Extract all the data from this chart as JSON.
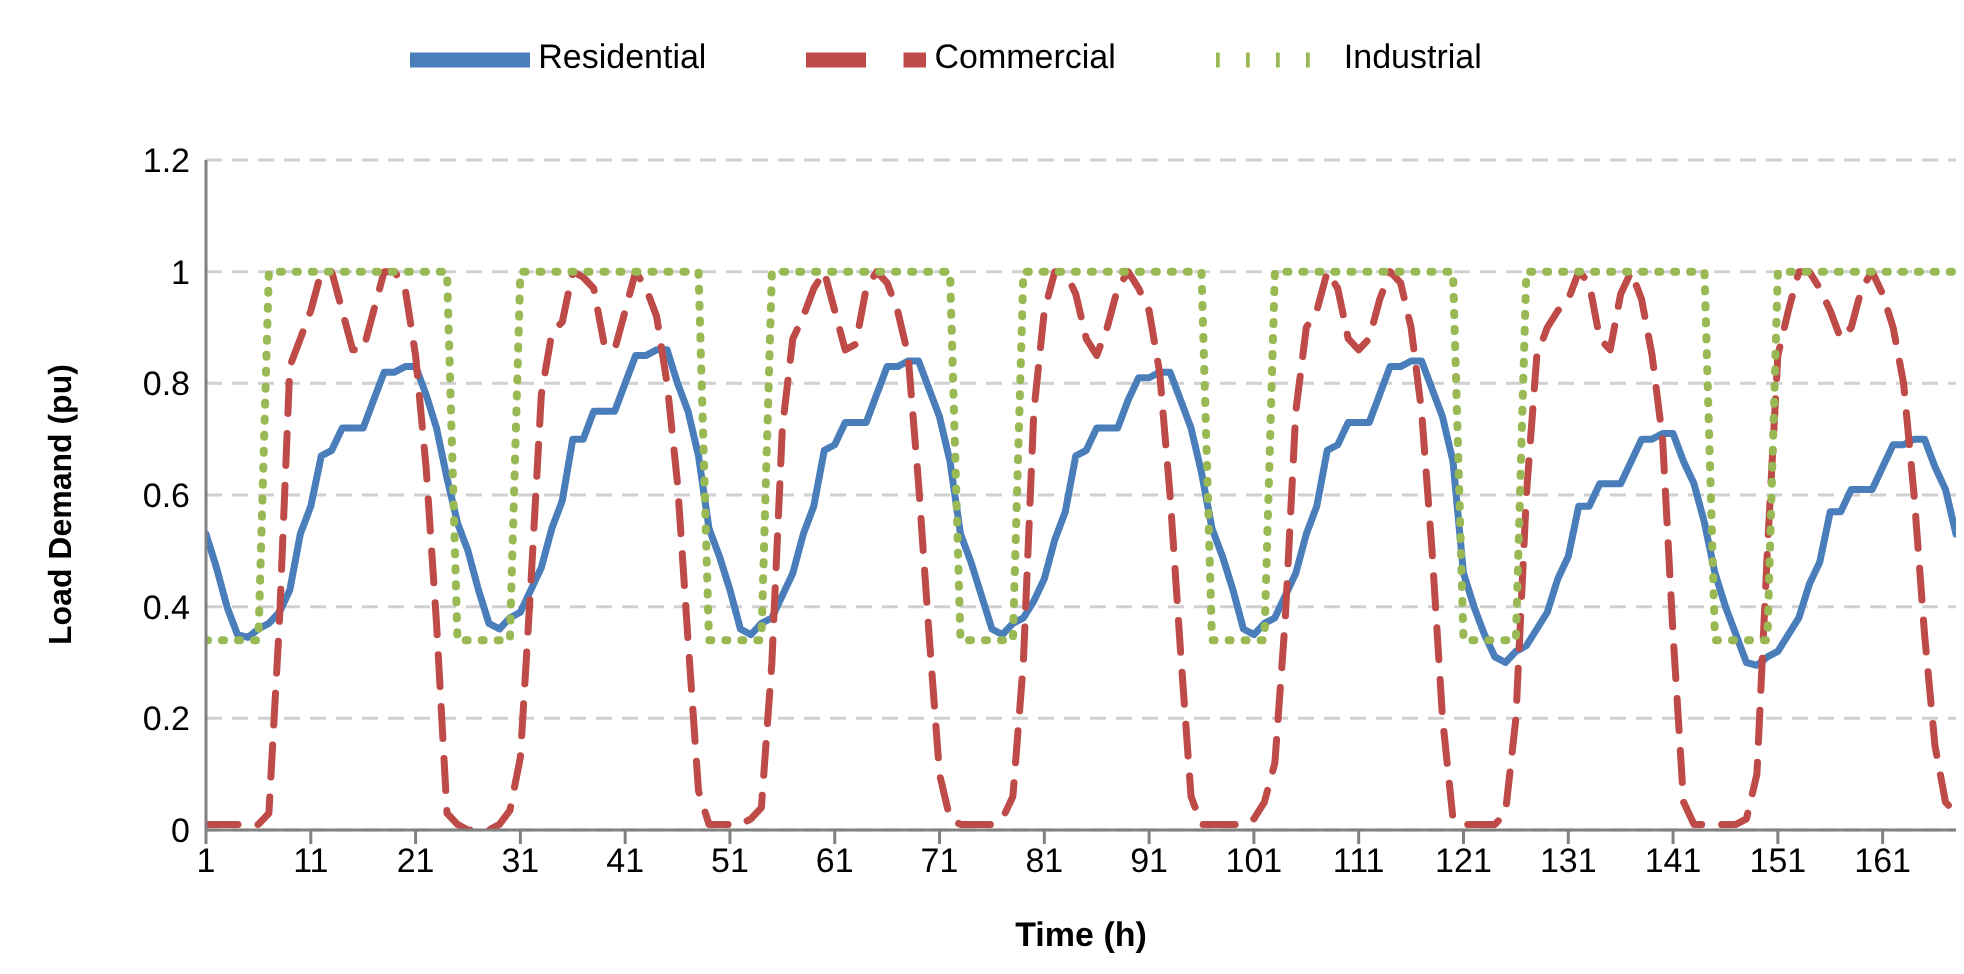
{
  "chart_data": {
    "type": "line",
    "xlabel": "Time (h)",
    "ylabel": "Load Demand (pu)",
    "x": [
      1,
      2,
      3,
      4,
      5,
      6,
      7,
      8,
      9,
      10,
      11,
      12,
      13,
      14,
      15,
      16,
      17,
      18,
      19,
      20,
      21,
      22,
      23,
      24,
      25,
      26,
      27,
      28,
      29,
      30,
      31,
      32,
      33,
      34,
      35,
      36,
      37,
      38,
      39,
      40,
      41,
      42,
      43,
      44,
      45,
      46,
      47,
      48,
      49,
      50,
      51,
      52,
      53,
      54,
      55,
      56,
      57,
      58,
      59,
      60,
      61,
      62,
      63,
      64,
      65,
      66,
      67,
      68,
      69,
      70,
      71,
      72,
      73,
      74,
      75,
      76,
      77,
      78,
      79,
      80,
      81,
      82,
      83,
      84,
      85,
      86,
      87,
      88,
      89,
      90,
      91,
      92,
      93,
      94,
      95,
      96,
      97,
      98,
      99,
      100,
      101,
      102,
      103,
      104,
      105,
      106,
      107,
      108,
      109,
      110,
      111,
      112,
      113,
      114,
      115,
      116,
      117,
      118,
      119,
      120,
      121,
      122,
      123,
      124,
      125,
      126,
      127,
      128,
      129,
      130,
      131,
      132,
      133,
      134,
      135,
      136,
      137,
      138,
      139,
      140,
      141,
      142,
      143,
      144,
      145,
      146,
      147,
      148,
      149,
      150,
      151,
      152,
      153,
      154,
      155,
      156,
      157,
      158,
      159,
      160,
      161,
      162,
      163,
      164,
      165,
      166,
      167,
      168
    ],
    "xlim": [
      1,
      168
    ],
    "xticks": [
      1,
      11,
      21,
      31,
      41,
      51,
      61,
      71,
      81,
      91,
      101,
      111,
      121,
      131,
      141,
      151,
      161
    ],
    "ylim": [
      0,
      1.2
    ],
    "yticks": [
      0,
      0.2,
      0.4,
      0.6,
      0.8,
      1,
      1.2
    ],
    "grid": "y",
    "legend": "top",
    "marker": "none",
    "series": [
      {
        "name": "Residential",
        "color": "#4a7ebb",
        "line_style": "solid",
        "values": [
          0.53,
          0.47,
          0.4,
          0.35,
          0.345,
          0.36,
          0.37,
          0.39,
          0.43,
          0.53,
          0.58,
          0.67,
          0.68,
          0.72,
          0.72,
          0.72,
          0.77,
          0.82,
          0.82,
          0.83,
          0.83,
          0.78,
          0.72,
          0.63,
          0.55,
          0.5,
          0.43,
          0.37,
          0.36,
          0.38,
          0.39,
          0.43,
          0.47,
          0.54,
          0.59,
          0.7,
          0.7,
          0.75,
          0.75,
          0.75,
          0.8,
          0.85,
          0.85,
          0.86,
          0.86,
          0.8,
          0.75,
          0.67,
          0.54,
          0.49,
          0.43,
          0.36,
          0.35,
          0.37,
          0.38,
          0.42,
          0.46,
          0.53,
          0.58,
          0.68,
          0.69,
          0.73,
          0.73,
          0.73,
          0.78,
          0.83,
          0.83,
          0.84,
          0.84,
          0.79,
          0.74,
          0.66,
          0.53,
          0.48,
          0.42,
          0.36,
          0.35,
          0.37,
          0.38,
          0.41,
          0.45,
          0.52,
          0.57,
          0.67,
          0.68,
          0.72,
          0.72,
          0.72,
          0.77,
          0.81,
          0.81,
          0.82,
          0.82,
          0.77,
          0.72,
          0.64,
          0.54,
          0.49,
          0.43,
          0.36,
          0.35,
          0.37,
          0.38,
          0.42,
          0.46,
          0.53,
          0.58,
          0.68,
          0.69,
          0.73,
          0.73,
          0.73,
          0.78,
          0.83,
          0.83,
          0.84,
          0.84,
          0.79,
          0.74,
          0.66,
          0.46,
          0.4,
          0.35,
          0.31,
          0.3,
          0.32,
          0.33,
          0.36,
          0.39,
          0.45,
          0.49,
          0.58,
          0.58,
          0.62,
          0.62,
          0.62,
          0.66,
          0.7,
          0.7,
          0.71,
          0.71,
          0.66,
          0.62,
          0.55,
          0.46,
          0.4,
          0.35,
          0.3,
          0.295,
          0.31,
          0.32,
          0.35,
          0.38,
          0.44,
          0.48,
          0.57,
          0.57,
          0.61,
          0.61,
          0.61,
          0.65,
          0.69,
          0.69,
          0.7,
          0.7,
          0.65,
          0.61,
          0.53
        ]
      },
      {
        "name": "Commercial",
        "color": "#be4b48",
        "line_style": "dashed",
        "values": [
          0.01,
          0.01,
          0.01,
          0.01,
          0.01,
          0.01,
          0.03,
          0.37,
          0.83,
          0.88,
          0.93,
          1.0,
          1.0,
          0.93,
          0.86,
          0.86,
          0.93,
          1.0,
          1.0,
          0.97,
          0.85,
          0.65,
          0.37,
          0.03,
          0.01,
          0,
          0,
          0,
          0.01,
          0.035,
          0.13,
          0.44,
          0.78,
          0.89,
          0.91,
          1.0,
          0.99,
          0.97,
          0.87,
          0.86,
          0.93,
          1.0,
          0.97,
          0.92,
          0.8,
          0.62,
          0.34,
          0.07,
          0.01,
          0.01,
          0.01,
          0.01,
          0.02,
          0.04,
          0.3,
          0.72,
          0.88,
          0.92,
          0.97,
          1.0,
          0.93,
          0.86,
          0.87,
          0.97,
          1.0,
          0.98,
          0.93,
          0.85,
          0.62,
          0.35,
          0.1,
          0.02,
          0.01,
          0.01,
          0.01,
          0.01,
          0.02,
          0.06,
          0.3,
          0.75,
          0.93,
          1.0,
          1.0,
          0.96,
          0.88,
          0.85,
          0.9,
          0.97,
          1.0,
          0.97,
          0.93,
          0.82,
          0.6,
          0.32,
          0.06,
          0.01,
          0.01,
          0.01,
          0.01,
          0.01,
          0.02,
          0.05,
          0.12,
          0.38,
          0.75,
          0.9,
          0.93,
          1.0,
          0.97,
          0.88,
          0.86,
          0.88,
          0.95,
          1.0,
          0.98,
          0.9,
          0.75,
          0.5,
          0.2,
          0.02,
          0.01,
          0.01,
          0.01,
          0.01,
          0.03,
          0.2,
          0.6,
          0.85,
          0.9,
          0.93,
          0.95,
          1.0,
          0.98,
          0.88,
          0.86,
          0.96,
          1.0,
          0.95,
          0.85,
          0.7,
          0.35,
          0.05,
          0.01,
          0.01,
          0.01,
          0.01,
          0.01,
          0.02,
          0.1,
          0.5,
          0.85,
          0.93,
          1.0,
          1.0,
          0.97,
          0.93,
          0.88,
          0.9,
          0.97,
          1.0,
          0.96,
          0.9,
          0.8,
          0.6,
          0.35,
          0.15,
          0.05,
          0.03
        ]
      },
      {
        "name": "Industrial",
        "color": "#98b954",
        "line_style": "dotted",
        "values": [
          0.34,
          0.34,
          0.34,
          0.34,
          0.34,
          0.34,
          1,
          1,
          1,
          1,
          1,
          1,
          1,
          1,
          1,
          1,
          1,
          1,
          1,
          1,
          1,
          1,
          1,
          1,
          0.34,
          0.34,
          0.34,
          0.34,
          0.34,
          0.34,
          1,
          1,
          1,
          1,
          1,
          1,
          1,
          1,
          1,
          1,
          1,
          1,
          1,
          1,
          1,
          1,
          1,
          1,
          0.34,
          0.34,
          0.34,
          0.34,
          0.34,
          0.34,
          1,
          1,
          1,
          1,
          1,
          1,
          1,
          1,
          1,
          1,
          1,
          1,
          1,
          1,
          1,
          1,
          1,
          1,
          0.34,
          0.34,
          0.34,
          0.34,
          0.34,
          0.34,
          1,
          1,
          1,
          1,
          1,
          1,
          1,
          1,
          1,
          1,
          1,
          1,
          1,
          1,
          1,
          1,
          1,
          1,
          0.34,
          0.34,
          0.34,
          0.34,
          0.34,
          0.34,
          1,
          1,
          1,
          1,
          1,
          1,
          1,
          1,
          1,
          1,
          1,
          1,
          1,
          1,
          1,
          1,
          1,
          1,
          0.34,
          0.34,
          0.34,
          0.34,
          0.34,
          0.34,
          1,
          1,
          1,
          1,
          1,
          1,
          1,
          1,
          1,
          1,
          1,
          1,
          1,
          1,
          1,
          1,
          1,
          1,
          0.34,
          0.34,
          0.34,
          0.34,
          0.34,
          0.34,
          1,
          1,
          1,
          1,
          1,
          1,
          1,
          1,
          1,
          1,
          1,
          1,
          1,
          1,
          1,
          1,
          1,
          1
        ]
      }
    ]
  }
}
